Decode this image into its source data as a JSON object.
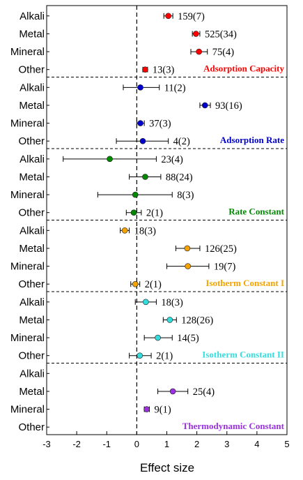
{
  "chart_data": {
    "type": "forest",
    "xlabel": "Effect size",
    "xlim": [
      -3,
      5
    ],
    "xticks": [
      "-3",
      "-2",
      "-1",
      "0",
      "1",
      "2",
      "3",
      "4",
      "5"
    ],
    "reference_line_x": 0,
    "categories": [
      "Alkali",
      "Metal",
      "Mineral",
      "Other"
    ],
    "panels": [
      {
        "title": "Adsorption Capacity",
        "color": "#ff0000",
        "rows": [
          {
            "category": "Alkali",
            "estimate": 1.05,
            "ci": [
              0.9,
              1.2
            ],
            "label": "159(7)"
          },
          {
            "category": "Metal",
            "estimate": 1.97,
            "ci": [
              1.85,
              2.1
            ],
            "label": "525(34)"
          },
          {
            "category": "Mineral",
            "estimate": 2.07,
            "ci": [
              1.8,
              2.35
            ],
            "label": "75(4)"
          },
          {
            "category": "Other",
            "estimate": 0.28,
            "ci": [
              0.2,
              0.36
            ],
            "label": "13(3)"
          }
        ]
      },
      {
        "title": "Adsorption Rate",
        "color": "#0000cc",
        "rows": [
          {
            "category": "Alkali",
            "estimate": 0.12,
            "ci": [
              -0.45,
              0.75
            ],
            "label": "11(2)"
          },
          {
            "category": "Metal",
            "estimate": 2.27,
            "ci": [
              2.1,
              2.45
            ],
            "label": "93(16)"
          },
          {
            "category": "Mineral",
            "estimate": 0.12,
            "ci": [
              0.0,
              0.25
            ],
            "label": "37(3)"
          },
          {
            "category": "Other",
            "estimate": 0.2,
            "ci": [
              -0.68,
              1.05
            ],
            "label": "4(2)"
          }
        ]
      },
      {
        "title": "Rate Constant",
        "color": "#008800",
        "rows": [
          {
            "category": "Alkali",
            "estimate": -0.9,
            "ci": [
              -2.45,
              0.65
            ],
            "label": "23(4)"
          },
          {
            "category": "Metal",
            "estimate": 0.28,
            "ci": [
              -0.25,
              0.8
            ],
            "label": "88(24)"
          },
          {
            "category": "Mineral",
            "estimate": -0.05,
            "ci": [
              -1.3,
              1.18
            ],
            "label": "8(3)"
          },
          {
            "category": "Other",
            "estimate": -0.1,
            "ci": [
              -0.35,
              0.15
            ],
            "label": "2(1)"
          }
        ]
      },
      {
        "title": "Isotherm Constant I",
        "color": "#f5a300",
        "rows": [
          {
            "category": "Alkali",
            "estimate": -0.4,
            "ci": [
              -0.55,
              -0.25
            ],
            "label": "18(3)"
          },
          {
            "category": "Metal",
            "estimate": 1.68,
            "ci": [
              1.3,
              2.1
            ],
            "label": "126(25)"
          },
          {
            "category": "Mineral",
            "estimate": 1.7,
            "ci": [
              1.0,
              2.4
            ],
            "label": "19(7)"
          },
          {
            "category": "Other",
            "estimate": -0.05,
            "ci": [
              -0.2,
              0.1
            ],
            "label": "2(1)"
          }
        ]
      },
      {
        "title": "Isotherm Constant II",
        "color": "#33dddd",
        "rows": [
          {
            "category": "Alkali",
            "estimate": 0.3,
            "ci": [
              -0.05,
              0.65
            ],
            "label": "18(3)"
          },
          {
            "category": "Metal",
            "estimate": 1.1,
            "ci": [
              0.88,
              1.32
            ],
            "label": "128(26)"
          },
          {
            "category": "Mineral",
            "estimate": 0.7,
            "ci": [
              0.25,
              1.18
            ],
            "label": "14(5)"
          },
          {
            "category": "Other",
            "estimate": 0.1,
            "ci": [
              -0.25,
              0.48
            ],
            "label": "2(1)"
          }
        ]
      },
      {
        "title": "Thermodynamic Constant",
        "color": "#9b30e0",
        "rows": [
          {
            "category": "Alkali",
            "estimate": null,
            "ci": null,
            "label": ""
          },
          {
            "category": "Metal",
            "estimate": 1.2,
            "ci": [
              0.7,
              1.7
            ],
            "label": "25(4)"
          },
          {
            "category": "Mineral",
            "estimate": 0.33,
            "ci": [
              0.25,
              0.42
            ],
            "label": "9(1)"
          },
          {
            "category": "Other",
            "estimate": null,
            "ci": null,
            "label": ""
          }
        ]
      }
    ]
  }
}
